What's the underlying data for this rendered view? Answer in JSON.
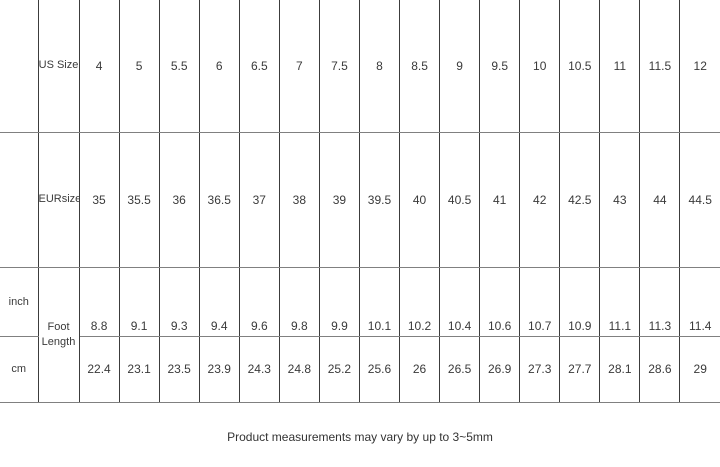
{
  "table": {
    "rows": [
      {
        "header": "US Size",
        "values": [
          "4",
          "5",
          "5.5",
          "6",
          "6.5",
          "7",
          "7.5",
          "8",
          "8.5",
          "9",
          "9.5",
          "10",
          "10.5",
          "11",
          "11.5",
          "12"
        ]
      },
      {
        "header": "EURsize",
        "values": [
          "35",
          "35.5",
          "36",
          "36.5",
          "37",
          "38",
          "39",
          "39.5",
          "40",
          "40.5",
          "41",
          "42",
          "42.5",
          "43",
          "44",
          "44.5"
        ]
      },
      {
        "label": "inch",
        "header": "Foot Length",
        "values": [
          "8.8",
          "9.1",
          "9.3",
          "9.4",
          "9.6",
          "9.8",
          "9.9",
          "10.1",
          "10.2",
          "10.4",
          "10.6",
          "10.7",
          "10.9",
          "11.1",
          "11.3",
          "11.4"
        ]
      },
      {
        "label": "cm",
        "values": [
          "22.4",
          "23.1",
          "23.5",
          "23.9",
          "24.3",
          "24.8",
          "25.2",
          "25.6",
          "26",
          "26.5",
          "26.9",
          "27.3",
          "27.7",
          "28.1",
          "28.6",
          "29"
        ]
      }
    ]
  },
  "footnote": "Product measurements may vary by up to 3~5mm",
  "colors": {
    "background": "#ffffff",
    "text": "#3a3a3a",
    "border_vertical": "#3c3c3c",
    "border_horizontal": "#808080"
  }
}
